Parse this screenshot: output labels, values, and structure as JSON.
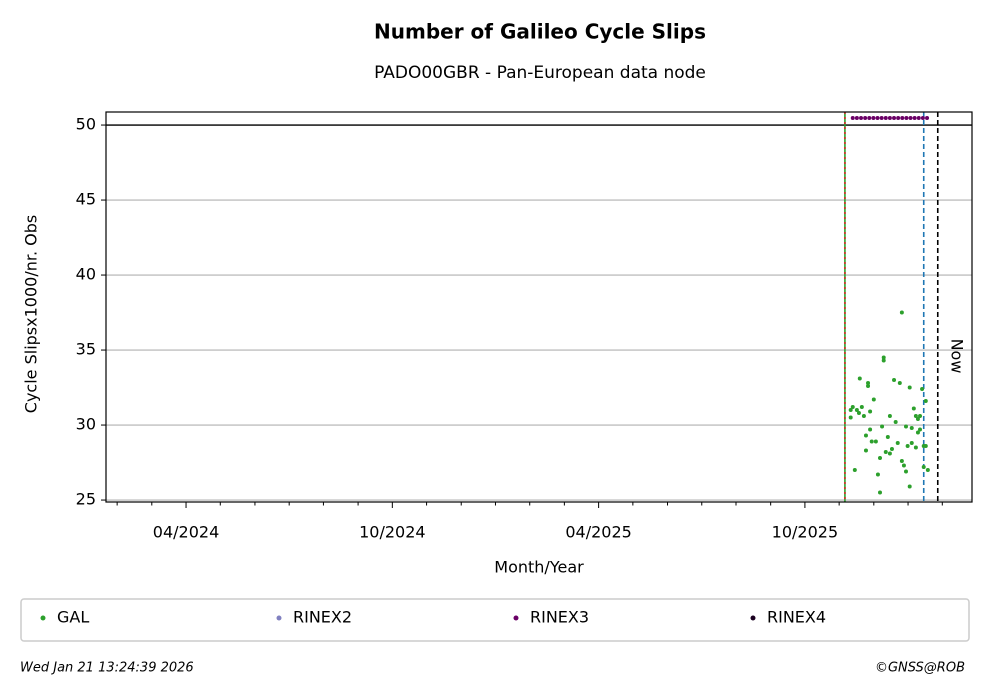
{
  "chart_data": {
    "type": "scatter",
    "title": "Number of Galileo Cycle Slips",
    "subtitle": "PADO00GBR - Pan-European data node",
    "x_label": "Month/Year",
    "y_label": "Cycle Slipsx1000/nr. Obs",
    "xlim": [
      2024.056,
      2026.155
    ],
    "ylim": [
      24.87,
      50.87
    ],
    "xticks": [
      {
        "value": 2024.25,
        "label": "04/2024"
      },
      {
        "value": 2024.75,
        "label": "10/2024"
      },
      {
        "value": 2025.25,
        "label": "04/2025"
      },
      {
        "value": 2025.75,
        "label": "10/2025"
      }
    ],
    "xminorticks": [
      2024.083,
      2024.167,
      2024.333,
      2024.417,
      2024.5,
      2024.583,
      2024.667,
      2024.833,
      2024.917,
      2025.0,
      2025.083,
      2025.167,
      2025.333,
      2025.417,
      2025.5,
      2025.583,
      2025.667,
      2025.833,
      2025.917,
      2026.0,
      2026.083
    ],
    "yticks": [
      25,
      30,
      35,
      40,
      45,
      50
    ],
    "grid": true,
    "hline": 50,
    "vlines": [
      {
        "x": 2025.847,
        "color": "#2ca02c",
        "style": "solid"
      },
      {
        "x": 2025.847,
        "color": "#d62728",
        "style": "dotted"
      },
      {
        "x": 2026.038,
        "color": "#1f77b4",
        "style": "dashed"
      },
      {
        "x": 2026.072,
        "color": "#000000",
        "style": "dashed",
        "label": "Now"
      }
    ],
    "series": [
      {
        "name": "GAL",
        "color": "#2ca02c",
        "x": [
          2025.861,
          2025.861,
          2025.866,
          2025.871,
          2025.876,
          2025.881,
          2025.883,
          2025.888,
          2025.893,
          2025.898,
          2025.898,
          2025.903,
          2025.903,
          2025.908,
          2025.908,
          2025.912,
          2025.917,
          2025.922,
          2025.927,
          2025.932,
          2025.932,
          2025.937,
          2025.941,
          2025.941,
          2025.946,
          2025.951,
          2025.956,
          2025.956,
          2025.961,
          2025.966,
          2025.97,
          2025.975,
          2025.98,
          2025.985,
          2025.985,
          2025.99,
          2025.995,
          2025.995,
          2025.999,
          2026.004,
          2026.004,
          2026.009,
          2026.009,
          2026.014,
          2026.019,
          2026.019,
          2026.024,
          2026.024,
          2026.029,
          2026.029,
          2026.034,
          2026.038,
          2026.038,
          2026.043,
          2026.043,
          2026.048
        ],
        "values": [
          31.0,
          30.5,
          31.2,
          27.0,
          31.0,
          30.8,
          33.1,
          31.2,
          30.6,
          29.3,
          28.3,
          32.8,
          32.6,
          30.9,
          29.7,
          28.9,
          31.7,
          28.9,
          26.7,
          25.5,
          27.8,
          29.9,
          34.3,
          34.5,
          28.2,
          29.2,
          30.6,
          28.1,
          28.4,
          33.0,
          30.2,
          28.8,
          32.8,
          37.5,
          27.6,
          27.3,
          29.9,
          26.9,
          28.6,
          32.5,
          25.9,
          29.8,
          28.8,
          31.1,
          30.6,
          28.5,
          30.4,
          29.5,
          29.7,
          30.6,
          32.4,
          28.6,
          27.2,
          31.6,
          28.6,
          27.0
        ]
      },
      {
        "name": "RINEX2",
        "color": "#8080c0",
        "x": [],
        "values": []
      },
      {
        "name": "RINEX3",
        "color": "#6a0066",
        "x": [
          2025.866,
          2025.876,
          2025.886,
          2025.896,
          2025.906,
          2025.916,
          2025.926,
          2025.936,
          2025.946,
          2025.956,
          2025.966,
          2025.976,
          2025.986,
          2025.996,
          2026.006,
          2026.016,
          2026.026,
          2026.036,
          2026.046
        ],
        "values": [
          50.47,
          50.47,
          50.47,
          50.47,
          50.47,
          50.47,
          50.47,
          50.47,
          50.47,
          50.47,
          50.47,
          50.47,
          50.47,
          50.47,
          50.47,
          50.47,
          50.47,
          50.47,
          50.47
        ]
      },
      {
        "name": "RINEX4",
        "color": "#1a0020",
        "x": [],
        "values": []
      }
    ],
    "timestamp": "Wed Jan 21 13:24:39 2026",
    "credit": "©GNSS@ROB"
  }
}
